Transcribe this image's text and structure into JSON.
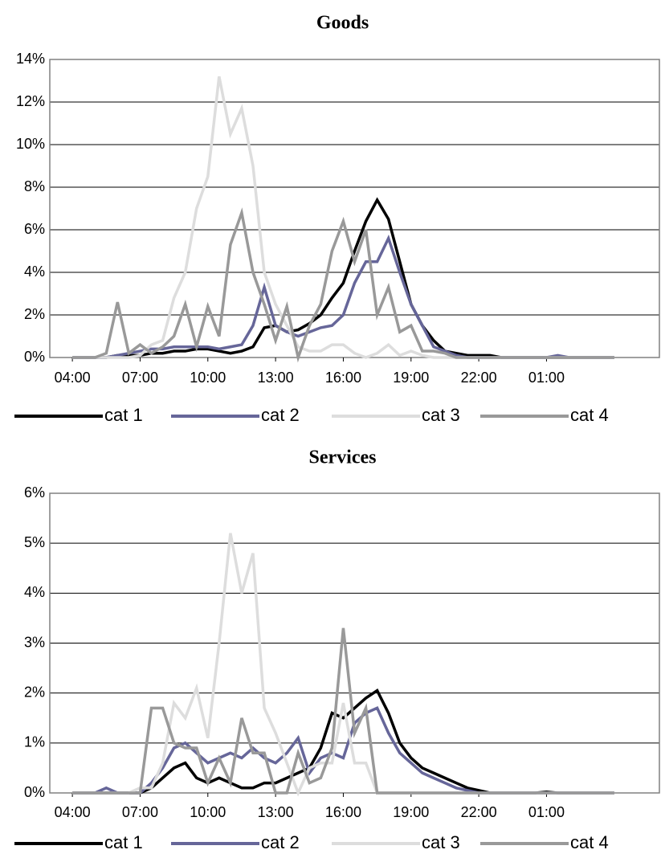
{
  "chart_data": [
    {
      "type": "line",
      "title": "Goods",
      "x": [
        4,
        4.5,
        5,
        5.5,
        6,
        6.5,
        7,
        7.5,
        8,
        8.5,
        9,
        9.5,
        10,
        10.5,
        11,
        11.5,
        12,
        12.5,
        13,
        13.5,
        14,
        14.5,
        15,
        15.5,
        16,
        16.5,
        17,
        17.5,
        18,
        18.5,
        19,
        19.5,
        20,
        20.5,
        21,
        21.5,
        22,
        22.5,
        23,
        23.5,
        24,
        24.5,
        25,
        25.5,
        26,
        26.5,
        27,
        27.5,
        28
      ],
      "xlim": [
        3,
        30
      ],
      "xticks": [
        {
          "value": 4,
          "label": "04:00"
        },
        {
          "value": 7,
          "label": "07:00"
        },
        {
          "value": 10,
          "label": "10:00"
        },
        {
          "value": 13,
          "label": "13:00"
        },
        {
          "value": 16,
          "label": "16:00"
        },
        {
          "value": 19,
          "label": "19:00"
        },
        {
          "value": 22,
          "label": "22:00"
        },
        {
          "value": 25,
          "label": "01:00"
        }
      ],
      "ylim": [
        0,
        14
      ],
      "yticks": [
        {
          "value": 0,
          "label": "0%"
        },
        {
          "value": 2,
          "label": "2%"
        },
        {
          "value": 4,
          "label": "4%"
        },
        {
          "value": 6,
          "label": "6%"
        },
        {
          "value": 8,
          "label": "8%"
        },
        {
          "value": 10,
          "label": "10%"
        },
        {
          "value": 12,
          "label": "12%"
        },
        {
          "value": 14,
          "label": "14%"
        }
      ],
      "grid": true,
      "series": [
        {
          "name": "cat 1",
          "color": "#000000",
          "values": [
            0,
            0,
            0,
            0,
            0.1,
            0.1,
            0.1,
            0.2,
            0.2,
            0.3,
            0.3,
            0.4,
            0.4,
            0.3,
            0.2,
            0.3,
            0.5,
            1.4,
            1.5,
            1.2,
            1.3,
            1.6,
            2.0,
            2.8,
            3.5,
            5.0,
            6.4,
            7.4,
            6.5,
            4.5,
            2.5,
            1.5,
            0.8,
            0.3,
            0.2,
            0.1,
            0.1,
            0.1,
            0,
            0,
            0,
            0,
            0,
            0,
            0,
            0,
            0,
            0,
            0
          ]
        },
        {
          "name": "cat 2",
          "color": "#666699",
          "values": [
            0,
            0,
            0,
            0,
            0.1,
            0.2,
            0.3,
            0.4,
            0.4,
            0.5,
            0.5,
            0.5,
            0.5,
            0.4,
            0.5,
            0.6,
            1.5,
            3.3,
            1.5,
            1.2,
            1.0,
            1.2,
            1.4,
            1.5,
            2.0,
            3.5,
            4.5,
            4.5,
            5.6,
            4.0,
            2.5,
            1.5,
            0.5,
            0.3,
            0.1,
            0,
            0,
            0,
            0,
            0,
            0,
            0,
            0,
            0.1,
            0,
            0,
            0,
            0,
            0
          ]
        },
        {
          "name": "cat 3",
          "color": "#dddddd",
          "values": [
            0,
            0,
            0,
            0,
            0,
            0,
            0.1,
            0.6,
            0.8,
            2.8,
            4.0,
            7.0,
            8.5,
            13.2,
            10.5,
            11.7,
            9.0,
            4.0,
            2.5,
            1.5,
            0.5,
            0.3,
            0.3,
            0.6,
            0.6,
            0.2,
            0,
            0.2,
            0.6,
            0.1,
            0.3,
            0.1,
            0,
            0,
            0,
            0,
            0,
            0,
            0,
            0,
            0,
            0,
            0,
            0,
            0,
            0,
            0,
            0,
            0
          ]
        },
        {
          "name": "cat 4",
          "color": "#999999",
          "values": [
            0,
            0,
            0,
            0.2,
            2.6,
            0.2,
            0.6,
            0.2,
            0.5,
            1.0,
            2.5,
            0.5,
            2.4,
            1.0,
            5.3,
            6.8,
            4.0,
            2.5,
            0.8,
            2.4,
            0,
            1.5,
            2.5,
            5.0,
            6.4,
            4.5,
            6.0,
            2.0,
            3.3,
            1.2,
            1.5,
            0.3,
            0.3,
            0.2,
            0,
            0,
            0,
            0,
            0,
            0,
            0,
            0,
            0,
            0,
            0,
            0,
            0,
            0,
            0
          ]
        }
      ]
    },
    {
      "type": "line",
      "title": "Services",
      "x": [
        4,
        4.5,
        5,
        5.5,
        6,
        6.5,
        7,
        7.5,
        8,
        8.5,
        9,
        9.5,
        10,
        10.5,
        11,
        11.5,
        12,
        12.5,
        13,
        13.5,
        14,
        14.5,
        15,
        15.5,
        16,
        16.5,
        17,
        17.5,
        18,
        18.5,
        19,
        19.5,
        20,
        20.5,
        21,
        21.5,
        22,
        22.5,
        23,
        23.5,
        24,
        24.5,
        25,
        25.5,
        26,
        26.5,
        27,
        27.5,
        28
      ],
      "xlim": [
        3,
        30
      ],
      "xticks": [
        {
          "value": 4,
          "label": "04:00"
        },
        {
          "value": 7,
          "label": "07:00"
        },
        {
          "value": 10,
          "label": "10:00"
        },
        {
          "value": 13,
          "label": "13:00"
        },
        {
          "value": 16,
          "label": "16:00"
        },
        {
          "value": 19,
          "label": "19:00"
        },
        {
          "value": 22,
          "label": "22:00"
        },
        {
          "value": 25,
          "label": "01:00"
        }
      ],
      "ylim": [
        0,
        6
      ],
      "yticks": [
        {
          "value": 0,
          "label": "0%"
        },
        {
          "value": 1,
          "label": "1%"
        },
        {
          "value": 2,
          "label": "2%"
        },
        {
          "value": 3,
          "label": "3%"
        },
        {
          "value": 4,
          "label": "4%"
        },
        {
          "value": 5,
          "label": "5%"
        },
        {
          "value": 6,
          "label": "6%"
        }
      ],
      "grid": true,
      "series": [
        {
          "name": "cat 1",
          "color": "#000000",
          "values": [
            0,
            0,
            0,
            0,
            0,
            0,
            0,
            0.1,
            0.3,
            0.5,
            0.6,
            0.3,
            0.2,
            0.3,
            0.2,
            0.1,
            0.1,
            0.2,
            0.2,
            0.3,
            0.4,
            0.5,
            0.9,
            1.6,
            1.5,
            1.7,
            1.9,
            2.05,
            1.6,
            1.0,
            0.7,
            0.5,
            0.4,
            0.3,
            0.2,
            0.1,
            0.05,
            0,
            0,
            0,
            0,
            0,
            0.02,
            0,
            0,
            0,
            0,
            0,
            0
          ]
        },
        {
          "name": "cat 2",
          "color": "#666699",
          "values": [
            0,
            0,
            0,
            0.1,
            0,
            0,
            0,
            0.2,
            0.5,
            0.9,
            1.0,
            0.8,
            0.6,
            0.7,
            0.8,
            0.7,
            0.9,
            0.7,
            0.6,
            0.8,
            1.1,
            0.4,
            0.7,
            0.8,
            0.7,
            1.4,
            1.6,
            1.7,
            1.2,
            0.8,
            0.6,
            0.4,
            0.3,
            0.2,
            0.1,
            0.05,
            0,
            0,
            0,
            0,
            0,
            0,
            0,
            0,
            0,
            0,
            0,
            0,
            0
          ]
        },
        {
          "name": "cat 3",
          "color": "#dddddd",
          "values": [
            0,
            0,
            0,
            0,
            0,
            0,
            0.1,
            0.1,
            0.6,
            1.8,
            1.5,
            2.1,
            1.1,
            3.0,
            5.2,
            4.0,
            4.8,
            1.7,
            1.2,
            0.6,
            0,
            0.5,
            0.6,
            0.6,
            1.8,
            0.6,
            0.6,
            0,
            0,
            0,
            0,
            0,
            0,
            0,
            0,
            0,
            0,
            0,
            0,
            0,
            0,
            0,
            0,
            0,
            0,
            0,
            0,
            0,
            0
          ]
        },
        {
          "name": "cat 4",
          "color": "#999999",
          "values": [
            0,
            0,
            0,
            0,
            0,
            0,
            0,
            1.7,
            1.7,
            1.0,
            0.9,
            0.9,
            0.2,
            0.7,
            0.2,
            1.5,
            0.8,
            0.8,
            0,
            0,
            0.8,
            0.2,
            0.3,
            0.9,
            3.3,
            1.2,
            1.7,
            0,
            0,
            0,
            0,
            0,
            0,
            0,
            0,
            0,
            0,
            0,
            0,
            0,
            0,
            0,
            0,
            0,
            0,
            0,
            0,
            0,
            0
          ]
        }
      ]
    }
  ]
}
